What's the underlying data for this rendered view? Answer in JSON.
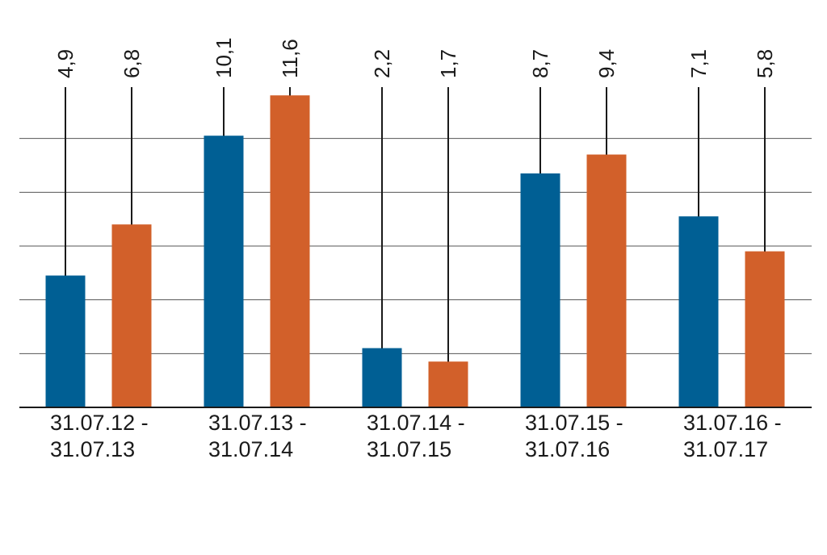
{
  "chart_data": {
    "type": "bar",
    "categories": [
      [
        "31.07.12 -",
        "31.07.13"
      ],
      [
        "31.07.13 -",
        "31.07.14"
      ],
      [
        "31.07.14 -",
        "31.07.15"
      ],
      [
        "31.07.15 -",
        "31.07.16"
      ],
      [
        "31.07.16 -",
        "31.07.17"
      ]
    ],
    "series": [
      {
        "color": "#005f94",
        "values": [
          4.9,
          10.1,
          2.2,
          8.7,
          7.1
        ],
        "labels": [
          "4,9",
          "10,1",
          "2,2",
          "8,7",
          "7,1"
        ]
      },
      {
        "color": "#d2602a",
        "values": [
          6.8,
          11.6,
          1.7,
          9.4,
          5.8
        ],
        "labels": [
          "6,8",
          "11,6",
          "1,7",
          "9,4",
          "5,8"
        ]
      }
    ],
    "ylim": [
      0,
      12
    ],
    "y_gridlines": [
      0,
      2,
      4,
      6,
      8,
      10
    ],
    "grid": true,
    "legend": false,
    "value_labels": "rotated text above each bar, joined to the bar by a vertical leader line"
  }
}
